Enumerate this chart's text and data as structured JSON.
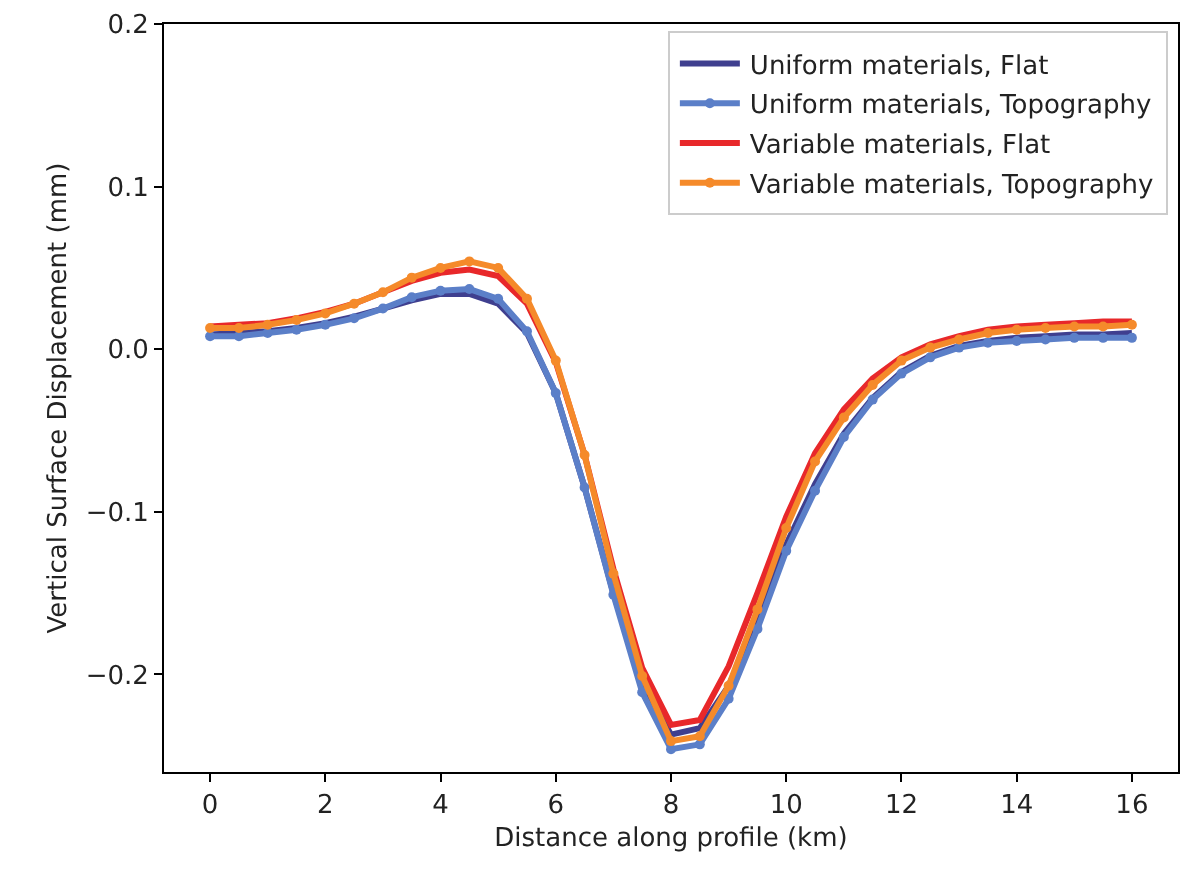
{
  "chart_data": {
    "type": "line",
    "xlabel": "Distance along profile (km)",
    "ylabel": "Vertical Surface Displacement (mm)",
    "x": [
      0,
      0.5,
      1,
      1.5,
      2,
      2.5,
      3,
      3.5,
      4,
      4.5,
      5,
      5.5,
      6,
      6.5,
      7,
      7.5,
      8,
      8.5,
      9,
      9.5,
      10,
      10.5,
      11,
      11.5,
      12,
      12.5,
      13,
      13.5,
      14,
      14.5,
      15,
      15.5,
      16
    ],
    "series": [
      {
        "name": "Uniform materials, Flat",
        "color": "#3f3f8f",
        "marker": "none",
        "values": [
          0.009,
          0.01,
          0.011,
          0.013,
          0.016,
          0.02,
          0.025,
          0.03,
          0.034,
          0.034,
          0.028,
          0.01,
          -0.027,
          -0.085,
          -0.15,
          -0.206,
          -0.237,
          -0.233,
          -0.207,
          -0.166,
          -0.12,
          -0.083,
          -0.052,
          -0.03,
          -0.014,
          -0.004,
          0.002,
          0.005,
          0.007,
          0.008,
          0.009,
          0.009,
          0.01
        ]
      },
      {
        "name": "Uniform materials, Topography",
        "color": "#5b7fc8",
        "marker": "circle",
        "values": [
          0.008,
          0.008,
          0.01,
          0.012,
          0.015,
          0.019,
          0.025,
          0.032,
          0.036,
          0.037,
          0.031,
          0.011,
          -0.027,
          -0.085,
          -0.151,
          -0.211,
          -0.246,
          -0.243,
          -0.215,
          -0.172,
          -0.124,
          -0.087,
          -0.054,
          -0.031,
          -0.015,
          -0.005,
          0.001,
          0.004,
          0.005,
          0.006,
          0.007,
          0.007,
          0.007
        ]
      },
      {
        "name": "Variable materials, Flat",
        "color": "#e8282a",
        "marker": "none",
        "values": [
          0.014,
          0.015,
          0.016,
          0.019,
          0.023,
          0.028,
          0.035,
          0.042,
          0.047,
          0.049,
          0.045,
          0.028,
          -0.008,
          -0.065,
          -0.135,
          -0.196,
          -0.231,
          -0.228,
          -0.195,
          -0.15,
          -0.103,
          -0.064,
          -0.037,
          -0.018,
          -0.005,
          0.003,
          0.008,
          0.012,
          0.014,
          0.015,
          0.016,
          0.017,
          0.017
        ]
      },
      {
        "name": "Variable materials, Topography",
        "color": "#f58a2a",
        "marker": "circle",
        "values": [
          0.013,
          0.013,
          0.015,
          0.018,
          0.022,
          0.028,
          0.035,
          0.044,
          0.05,
          0.054,
          0.05,
          0.031,
          -0.007,
          -0.065,
          -0.138,
          -0.201,
          -0.241,
          -0.238,
          -0.207,
          -0.16,
          -0.11,
          -0.069,
          -0.042,
          -0.022,
          -0.007,
          0.001,
          0.006,
          0.01,
          0.012,
          0.013,
          0.014,
          0.014,
          0.015
        ]
      }
    ],
    "xlim": [
      -0.8,
      16.8
    ],
    "xticks": [
      0,
      2,
      4,
      6,
      8,
      10,
      12,
      14,
      16
    ],
    "ylim": [
      -0.26,
      0.2
    ],
    "yticks": [
      {
        "value": -0.2,
        "label": "−0.2"
      },
      {
        "value": -0.1,
        "label": "−0.1"
      },
      {
        "value": 0,
        "label": "0.0"
      },
      0.1,
      0.2
    ],
    "legend": "top right",
    "line_style": "solid"
  }
}
